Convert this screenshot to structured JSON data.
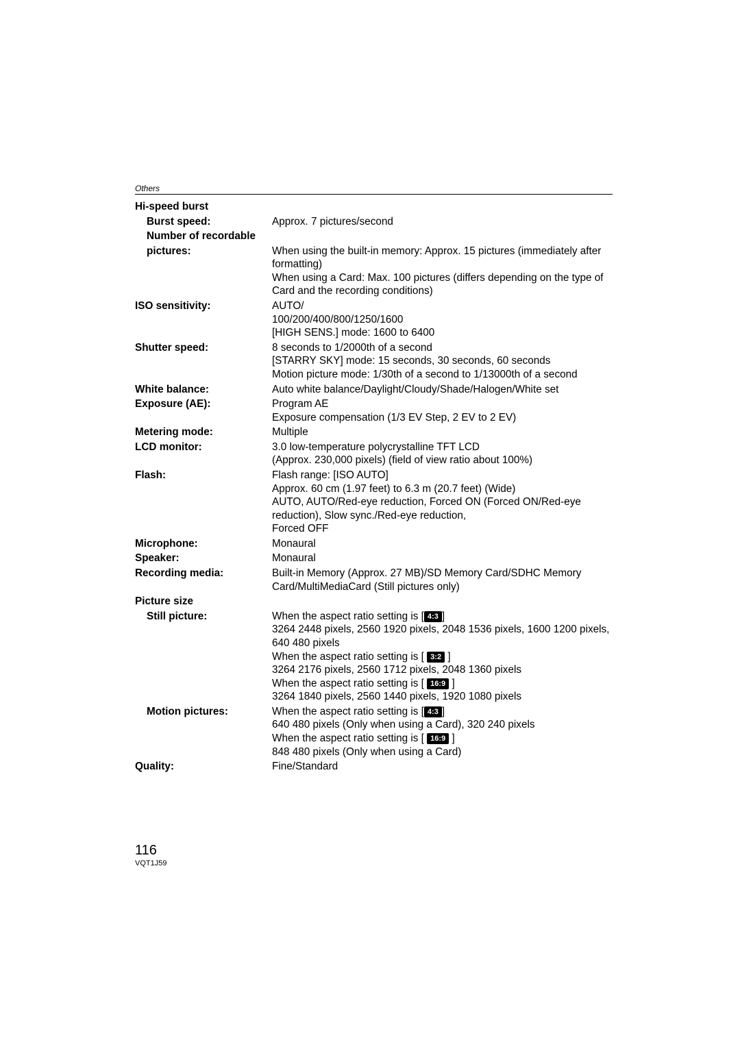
{
  "section_header": "Others",
  "rows": [
    {
      "type": "header",
      "label": "Hi-speed burst"
    },
    {
      "type": "sub",
      "label": "Burst speed:",
      "value": "Approx. 7 pictures/second"
    },
    {
      "type": "sub",
      "label": "Number of recordable"
    },
    {
      "type": "sub",
      "label": "pictures:",
      "value": "When using the built-in memory: Approx. 15 pictures (immediately after formatting)\nWhen using a Card: Max. 100 pictures (differs depending on the type of Card and the recording conditions)"
    },
    {
      "type": "main",
      "label": "ISO sensitivity:",
      "value": "AUTO/\n100/200/400/800/1250/1600\n[HIGH SENS.] mode:  1600 to 6400"
    },
    {
      "type": "main",
      "label": "Shutter speed:",
      "value": "8 seconds to 1/2000th of a second\n[STARRY SKY] mode:  15 seconds, 30 seconds, 60 seconds\nMotion picture mode:  1/30th of a second to 1/13000th of a second"
    },
    {
      "type": "main",
      "label": "White balance:",
      "value": "Auto white balance/Daylight/Cloudy/Shade/Halogen/White set"
    },
    {
      "type": "main",
      "label": "Exposure (AE):",
      "value": "Program AE\nExposure compensation (1/3 EV Step,    2 EV to    2 EV)"
    },
    {
      "type": "main",
      "label": "Metering mode:",
      "value": "Multiple"
    },
    {
      "type": "main",
      "label": "LCD monitor:",
      "value": "3.0  low-temperature polycrystalline TFT LCD\n(Approx. 230,000 pixels) (field of view ratio about 100%)"
    },
    {
      "type": "main",
      "label": "Flash:",
      "value": "Flash range:  [ISO AUTO]\nApprox. 60 cm (1.97 feet) to 6.3 m (20.7 feet) (Wide)\nAUTO, AUTO/Red-eye reduction, Forced ON (Forced ON/Red-eye reduction), Slow sync./Red-eye reduction, \nForced OFF"
    },
    {
      "type": "main",
      "label": "Microphone:",
      "value": "Monaural"
    },
    {
      "type": "main",
      "label": "Speaker:",
      "value": "Monaural"
    },
    {
      "type": "main",
      "label": "Recording media:",
      "value": "Built-in Memory (Approx. 27 MB)/SD Memory Card/SDHC Memory Card/MultiMediaCard (Still pictures only)"
    },
    {
      "type": "header",
      "label": "Picture size"
    },
    {
      "type": "sub_html",
      "label": "Still picture:",
      "value": "When the aspect ratio setting is [<span class=\"badge\">4:3</span>]<br>3264   2448 pixels, 2560   1920 pixels, 2048   1536 pixels, 1600   1200 pixels, 640   480 pixels<br>When the aspect ratio setting is [&nbsp;<span class=\"badge\">3:2</span>&nbsp;]<br>3264   2176 pixels, 2560   1712 pixels, 2048   1360 pixels<br>When the aspect ratio setting is [&nbsp;<span class=\"badge\">16:9</span>&nbsp;]<br>3264   1840 pixels, 2560   1440 pixels, 1920   1080 pixels"
    },
    {
      "type": "sub_html",
      "label": "Motion pictures:",
      "value": "When the aspect ratio setting is [<span class=\"badge\">4:3</span>]<br>640   480 pixels (Only when using a Card), 320   240 pixels<br>When the aspect ratio setting is [&nbsp;<span class=\"badge\">16:9</span>&nbsp;]<br>848   480 pixels (Only when using a Card)"
    },
    {
      "type": "main",
      "label": "Quality:",
      "value": "Fine/Standard"
    }
  ],
  "footer": {
    "page_number": "116",
    "doc_id": "VQT1J59"
  }
}
